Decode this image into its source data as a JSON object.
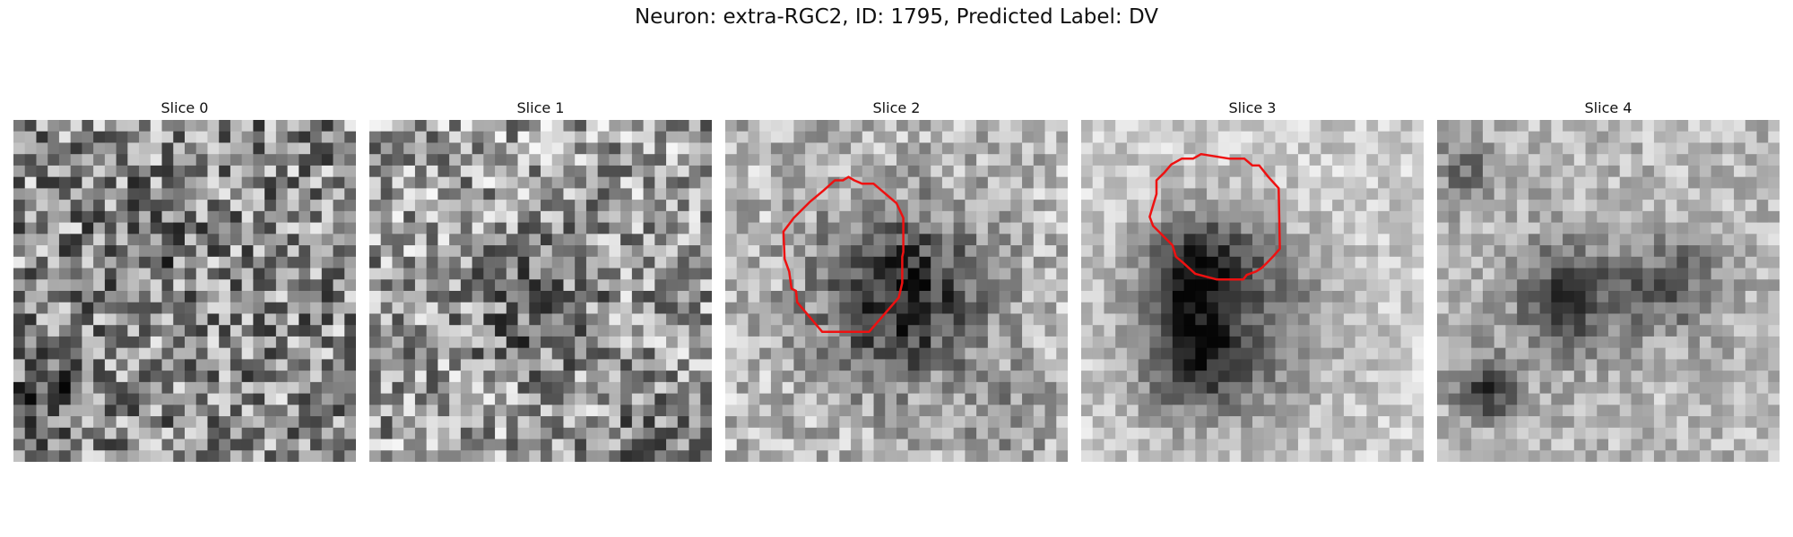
{
  "figure": {
    "title": "Neuron: extra-RGC2, ID: 1795, Predicted Label: DV"
  },
  "panels": [
    {
      "label": "Slice 0",
      "pattern": "noise-uniform",
      "contour": false
    },
    {
      "label": "Slice 1",
      "pattern": "noise-faint-blob",
      "contour": false
    },
    {
      "label": "Slice 2",
      "pattern": "dark-blob-center",
      "contour": true
    },
    {
      "label": "Slice 3",
      "pattern": "dark-ring-upper",
      "contour": true
    },
    {
      "label": "Slice 4",
      "pattern": "blurred-mottled",
      "contour": false
    }
  ],
  "colors": {
    "contour": "#ee1111",
    "colormap": "gray"
  }
}
